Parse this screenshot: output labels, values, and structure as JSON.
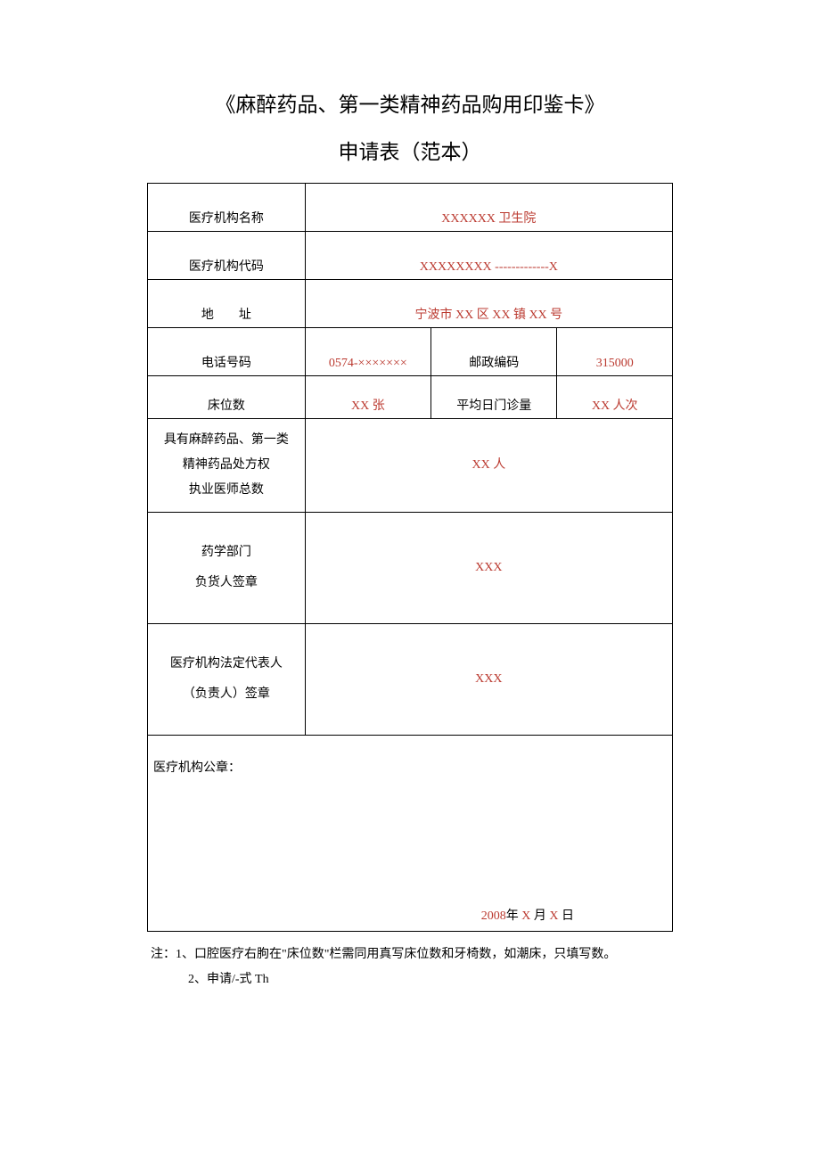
{
  "title": "《麻醉药品、第一类精神药品购用印鉴卡》",
  "subtitle": "申请表（范本）",
  "rows": {
    "org_name": {
      "label": "医疗机构名称",
      "value": "XXXXXX 卫生院"
    },
    "org_code": {
      "label": "医疗机构代码",
      "value": "XXXXXXXX -------------X"
    },
    "address_label_a": "地",
    "address_label_b": "址",
    "address": {
      "value": "宁波市 XX 区 XX 镇 XX 号"
    },
    "phone": {
      "label": "电话号码",
      "value": "0574-×××××××"
    },
    "postcode": {
      "label": "邮政编码",
      "value": "315000"
    },
    "beds": {
      "label": "床位数",
      "value": "XX 张"
    },
    "daily": {
      "label": "平均日门诊量",
      "value": "XX 人次"
    },
    "doctors": {
      "l1": "具有麻醉药品、第一类",
      "l2": "精神药品处方权",
      "l3": "执业医师总数",
      "value": "XX 人"
    },
    "pharmacy": {
      "l1": "药学部门",
      "l2": "负货人签章",
      "value": "XXX"
    },
    "legal": {
      "l1": "医疗机构法定代表人",
      "l2": "（负责人）签章",
      "value": "XXX"
    },
    "stamp_label": "医疗机构公章：",
    "date_year": "2008",
    "date_yx": "年 ",
    "date_mx": "X",
    "date_my": " 月 ",
    "date_dx": "X",
    "date_dy": " 日"
  },
  "notes": {
    "line1": "注：1、口腔医疗右朐在\"床位数\"栏需同用真写床位数和牙椅数，如潮床，只填写数。",
    "line2": "2、申请/-式 Th"
  },
  "colors": {
    "text": "#000000",
    "fill_red": "#bb3a30",
    "border": "#000000",
    "background": "#ffffff"
  }
}
